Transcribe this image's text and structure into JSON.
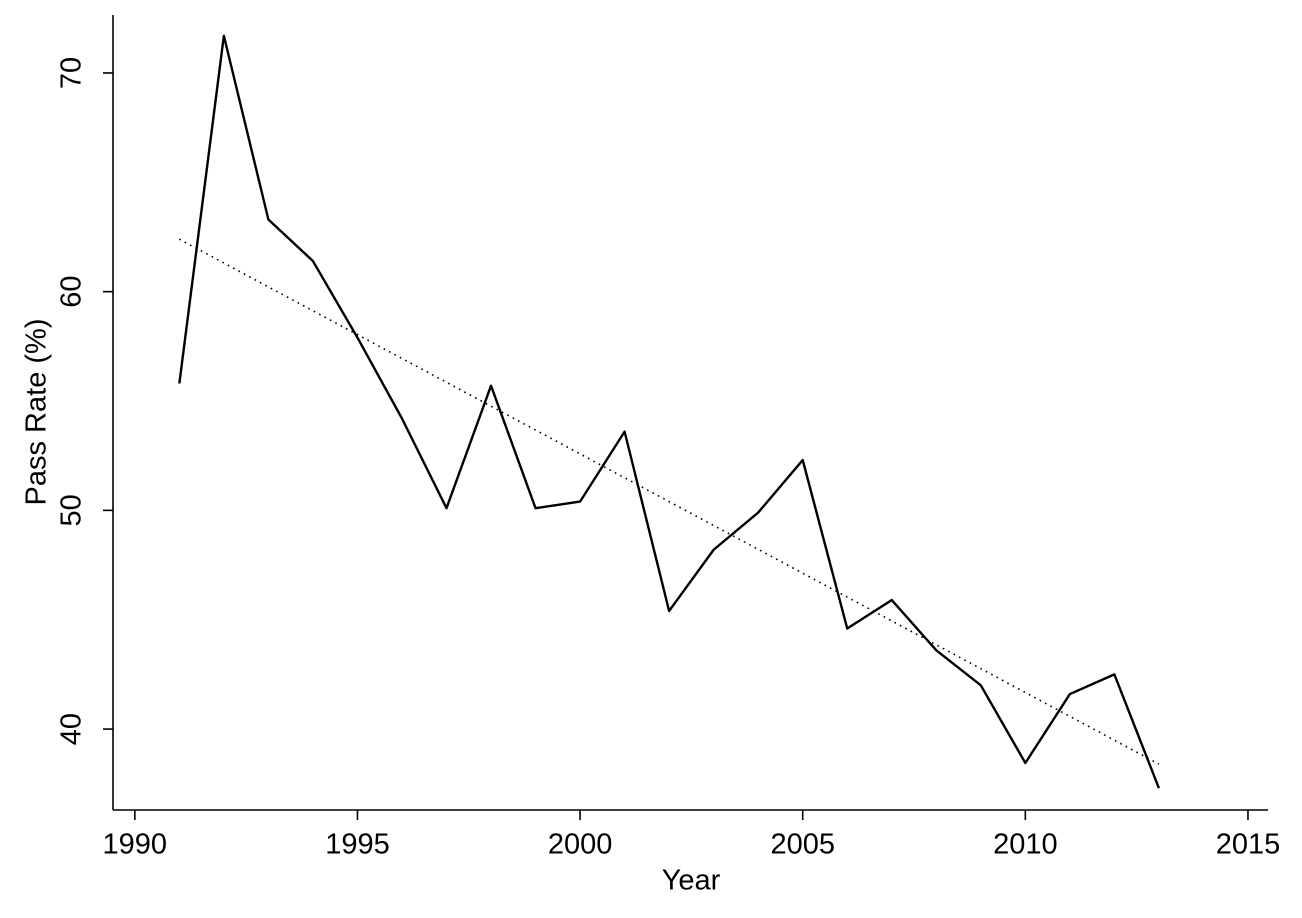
{
  "chart_data": {
    "type": "line",
    "x_label": "Year",
    "y_label": "Pass Rate (%)",
    "x": [
      1991,
      1992,
      1993,
      1994,
      1995,
      1996,
      1997,
      1998,
      1999,
      2000,
      2001,
      2002,
      2003,
      2004,
      2005,
      2006,
      2007,
      2008,
      2009,
      2010,
      2011,
      2012,
      2013
    ],
    "series": [
      {
        "color": "#000000",
        "style": "solid",
        "values": [
          55.8,
          71.7,
          63.3,
          61.4,
          57.9,
          54.2,
          50.1,
          55.7,
          50.1,
          50.4,
          53.6,
          45.4,
          48.2,
          49.9,
          52.3,
          44.6,
          45.9,
          43.6,
          42.0,
          38.45,
          41.6,
          42.5,
          37.3
        ]
      },
      {
        "color": "#000000",
        "style": "dotted",
        "x": [
          1991,
          2013
        ],
        "values": [
          62.4,
          38.4
        ]
      }
    ],
    "xlim": [
      1989.51,
      2015.45
    ],
    "ylim": [
      36.3,
      72.65
    ],
    "xticks": [
      1990,
      1995,
      2000,
      2005,
      2010,
      2015
    ],
    "yticks": [
      40,
      50,
      60,
      70
    ],
    "grid": false
  }
}
